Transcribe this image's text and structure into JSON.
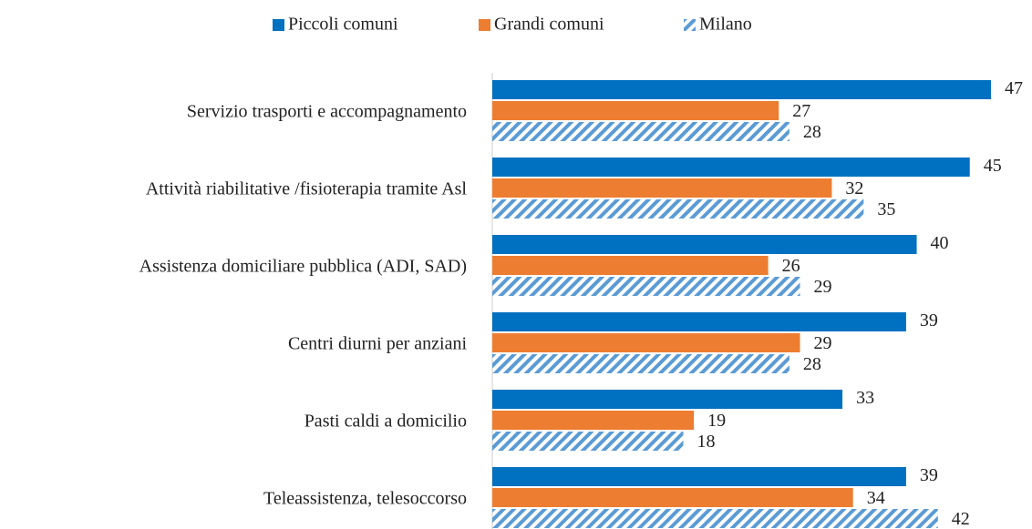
{
  "chart_data": {
    "type": "barh",
    "categories": [
      "Servizio trasporti e accompagnamento",
      "Attività riabilitative /fisioterapia tramite Asl",
      "Assistenza domiciliare pubblica (ADI, SAD)",
      "Centri diurni per anziani",
      "Pasti caldi a domicilio",
      "Teleassistenza, telesoccorso"
    ],
    "series": [
      {
        "name": "Piccoli comuni",
        "color": "#0070c0",
        "values": [
          47,
          45,
          40,
          39,
          33,
          39
        ]
      },
      {
        "name": "Grandi comuni",
        "color": "#ed7d31",
        "values": [
          27,
          32,
          26,
          29,
          19,
          34
        ]
      },
      {
        "name": "Milano",
        "color": "#5b9bd5",
        "pattern": "diagonal",
        "values": [
          28,
          35,
          29,
          28,
          18,
          42
        ]
      }
    ],
    "legend": "top"
  }
}
